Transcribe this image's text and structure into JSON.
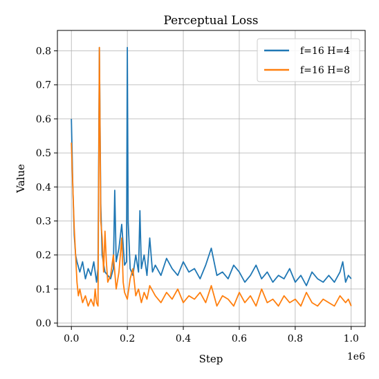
{
  "chart_data": {
    "type": "line",
    "title": "Perceptual Loss",
    "xlabel": "Step",
    "ylabel": "Value",
    "x_offset_label": "1e6",
    "xlim": [
      -0.05,
      1.05
    ],
    "ylim": [
      -0.01,
      0.86
    ],
    "x_ticks": [
      0.0,
      0.2,
      0.4,
      0.6,
      0.8,
      1.0
    ],
    "x_tick_labels": [
      "0.0",
      "0.2",
      "0.4",
      "0.6",
      "0.8",
      "1.0"
    ],
    "y_ticks": [
      0.0,
      0.1,
      0.2,
      0.3,
      0.4,
      0.5,
      0.6,
      0.7,
      0.8
    ],
    "y_tick_labels": [
      "0.0",
      "0.1",
      "0.2",
      "0.3",
      "0.4",
      "0.5",
      "0.6",
      "0.7",
      "0.8"
    ],
    "grid": true,
    "legend_position": "top-right",
    "series": [
      {
        "name": "f=16 H=4",
        "color": "#1f77b4",
        "x": [
          0.0,
          0.005,
          0.01,
          0.015,
          0.02,
          0.03,
          0.04,
          0.05,
          0.06,
          0.07,
          0.08,
          0.09,
          0.095,
          0.1,
          0.105,
          0.11,
          0.12,
          0.13,
          0.14,
          0.15,
          0.155,
          0.16,
          0.17,
          0.18,
          0.19,
          0.197,
          0.2,
          0.203,
          0.21,
          0.22,
          0.23,
          0.24,
          0.245,
          0.25,
          0.26,
          0.27,
          0.28,
          0.29,
          0.3,
          0.32,
          0.34,
          0.36,
          0.38,
          0.4,
          0.42,
          0.44,
          0.46,
          0.48,
          0.5,
          0.52,
          0.54,
          0.56,
          0.58,
          0.6,
          0.62,
          0.64,
          0.66,
          0.68,
          0.7,
          0.72,
          0.74,
          0.76,
          0.78,
          0.8,
          0.82,
          0.84,
          0.86,
          0.88,
          0.9,
          0.92,
          0.94,
          0.96,
          0.97,
          0.98,
          0.99,
          1.0
        ],
        "y": [
          0.6,
          0.4,
          0.26,
          0.2,
          0.18,
          0.15,
          0.18,
          0.13,
          0.16,
          0.14,
          0.18,
          0.12,
          0.16,
          0.81,
          0.35,
          0.2,
          0.15,
          0.14,
          0.13,
          0.16,
          0.39,
          0.18,
          0.22,
          0.29,
          0.17,
          0.18,
          0.81,
          0.3,
          0.16,
          0.14,
          0.2,
          0.15,
          0.33,
          0.16,
          0.2,
          0.14,
          0.25,
          0.15,
          0.17,
          0.14,
          0.19,
          0.16,
          0.14,
          0.18,
          0.15,
          0.16,
          0.13,
          0.17,
          0.22,
          0.14,
          0.15,
          0.13,
          0.17,
          0.15,
          0.12,
          0.14,
          0.17,
          0.13,
          0.15,
          0.12,
          0.14,
          0.13,
          0.16,
          0.12,
          0.14,
          0.11,
          0.15,
          0.13,
          0.12,
          0.14,
          0.12,
          0.15,
          0.18,
          0.12,
          0.14,
          0.13
        ]
      },
      {
        "name": "f=16 H=8",
        "color": "#ff7f0e",
        "x": [
          0.0,
          0.005,
          0.01,
          0.015,
          0.02,
          0.025,
          0.03,
          0.04,
          0.05,
          0.06,
          0.07,
          0.08,
          0.085,
          0.09,
          0.095,
          0.1,
          0.105,
          0.11,
          0.115,
          0.12,
          0.125,
          0.13,
          0.14,
          0.15,
          0.16,
          0.17,
          0.18,
          0.185,
          0.19,
          0.2,
          0.21,
          0.22,
          0.23,
          0.24,
          0.25,
          0.26,
          0.27,
          0.28,
          0.3,
          0.32,
          0.34,
          0.36,
          0.38,
          0.4,
          0.42,
          0.44,
          0.46,
          0.48,
          0.5,
          0.52,
          0.54,
          0.56,
          0.58,
          0.6,
          0.62,
          0.64,
          0.66,
          0.68,
          0.7,
          0.72,
          0.74,
          0.76,
          0.78,
          0.8,
          0.82,
          0.84,
          0.86,
          0.88,
          0.9,
          0.92,
          0.94,
          0.96,
          0.98,
          0.99,
          1.0
        ],
        "y": [
          0.53,
          0.4,
          0.28,
          0.2,
          0.12,
          0.08,
          0.1,
          0.06,
          0.08,
          0.05,
          0.07,
          0.05,
          0.1,
          0.06,
          0.05,
          0.81,
          0.3,
          0.25,
          0.15,
          0.27,
          0.18,
          0.12,
          0.14,
          0.2,
          0.1,
          0.15,
          0.25,
          0.12,
          0.09,
          0.07,
          0.13,
          0.16,
          0.08,
          0.1,
          0.06,
          0.09,
          0.07,
          0.11,
          0.08,
          0.06,
          0.09,
          0.07,
          0.1,
          0.06,
          0.08,
          0.07,
          0.09,
          0.06,
          0.11,
          0.05,
          0.08,
          0.07,
          0.05,
          0.09,
          0.06,
          0.08,
          0.05,
          0.1,
          0.06,
          0.07,
          0.05,
          0.08,
          0.06,
          0.07,
          0.05,
          0.09,
          0.06,
          0.05,
          0.07,
          0.06,
          0.05,
          0.08,
          0.06,
          0.07,
          0.05
        ]
      }
    ]
  }
}
